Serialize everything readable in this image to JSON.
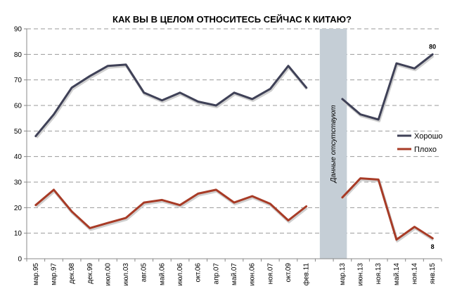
{
  "chart_data": {
    "type": "line",
    "title": "КАК ВЫ В ЦЕЛОМ ОТНОСИТЕСЬ СЕЙЧАС К КИТАЮ?",
    "categories": [
      "мар.95",
      "мар.97",
      "дек.98",
      "дек.99",
      "июл.00",
      "июл.03",
      "авг.05",
      "май.06",
      "июл.06",
      "окт.06",
      "апр.07",
      "май.07",
      "июн.06",
      "ноя.07",
      "окт.09",
      "фев.11",
      "",
      "мар.13",
      "июн.13",
      "ноя.13",
      "май.14",
      "ноя.14",
      "янв.15"
    ],
    "ylim": [
      0,
      90
    ],
    "yticks": [
      "0",
      "10",
      "20",
      "30",
      "40",
      "50",
      "60",
      "70",
      "80",
      "90"
    ],
    "grid": true,
    "legend": "right",
    "gap_annotation": "Данные отсутствуют",
    "series": [
      {
        "name": "Хорошо",
        "color": "#3f4157",
        "values": [
          48,
          56.5,
          67,
          71.5,
          75.5,
          76,
          65,
          62,
          65,
          61.5,
          60,
          65,
          62.5,
          66.5,
          75.5,
          67,
          null,
          62.5,
          56.5,
          54.5,
          76.5,
          74.5,
          80
        ]
      },
      {
        "name": "Плохо",
        "color": "#a83b26",
        "values": [
          21,
          27,
          18.5,
          12,
          14,
          16,
          22,
          23,
          21,
          25.5,
          27,
          22,
          24.5,
          21.5,
          15,
          20.5,
          null,
          24,
          31.5,
          31,
          7.5,
          12.5,
          8
        ]
      }
    ],
    "data_labels": [
      {
        "series": "Хорошо",
        "text": "80"
      },
      {
        "series": "Плохо",
        "text": "8"
      }
    ]
  }
}
